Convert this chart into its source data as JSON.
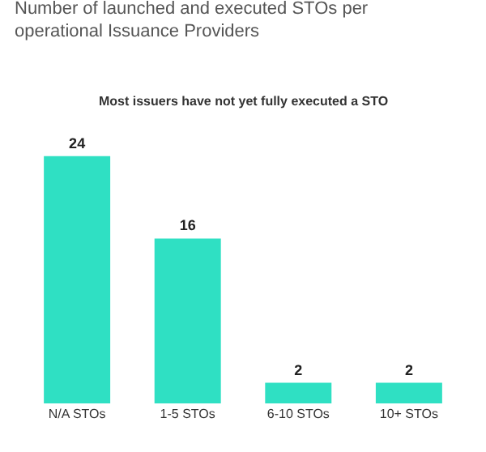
{
  "chart_data": {
    "type": "bar",
    "title": "Number of launched and executed STOs per operational Issuance Providers",
    "subtitle": "Most issuers have not yet fully executed a STO",
    "categories": [
      "N/A STOs",
      "1-5 STOs",
      "6-10 STOs",
      "10+ STOs"
    ],
    "values": [
      24,
      16,
      2,
      2
    ],
    "color": "#2fe0c3",
    "data_labels": true
  }
}
